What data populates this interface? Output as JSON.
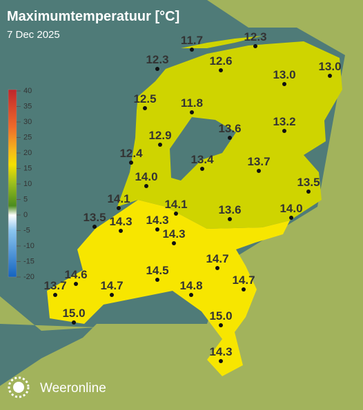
{
  "header": {
    "title": "Maximumtemperatuur [°C]",
    "date": "7 Dec 2025"
  },
  "legend": {
    "ticks": [
      40,
      35,
      30,
      25,
      20,
      15,
      10,
      5,
      0,
      -5,
      -10,
      -15,
      -20
    ]
  },
  "stations": [
    "11.7",
    "12.3",
    "12.3",
    "12.6",
    "13.0",
    "13.0",
    "12.5",
    "11.8",
    "13.6",
    "13.2",
    "12.9",
    "12.4",
    "13.4",
    "13.7",
    "14.0",
    "13.5",
    "14.1",
    "14.1",
    "13.6",
    "14.0",
    "13.5",
    "14.3",
    "14.3",
    "14.3",
    "14.7",
    "14.6",
    "14.5",
    "14.8",
    "14.7",
    "13.7",
    "14.7",
    "15.0",
    "15.0",
    "14.3"
  ],
  "brand": "Weeronline"
}
